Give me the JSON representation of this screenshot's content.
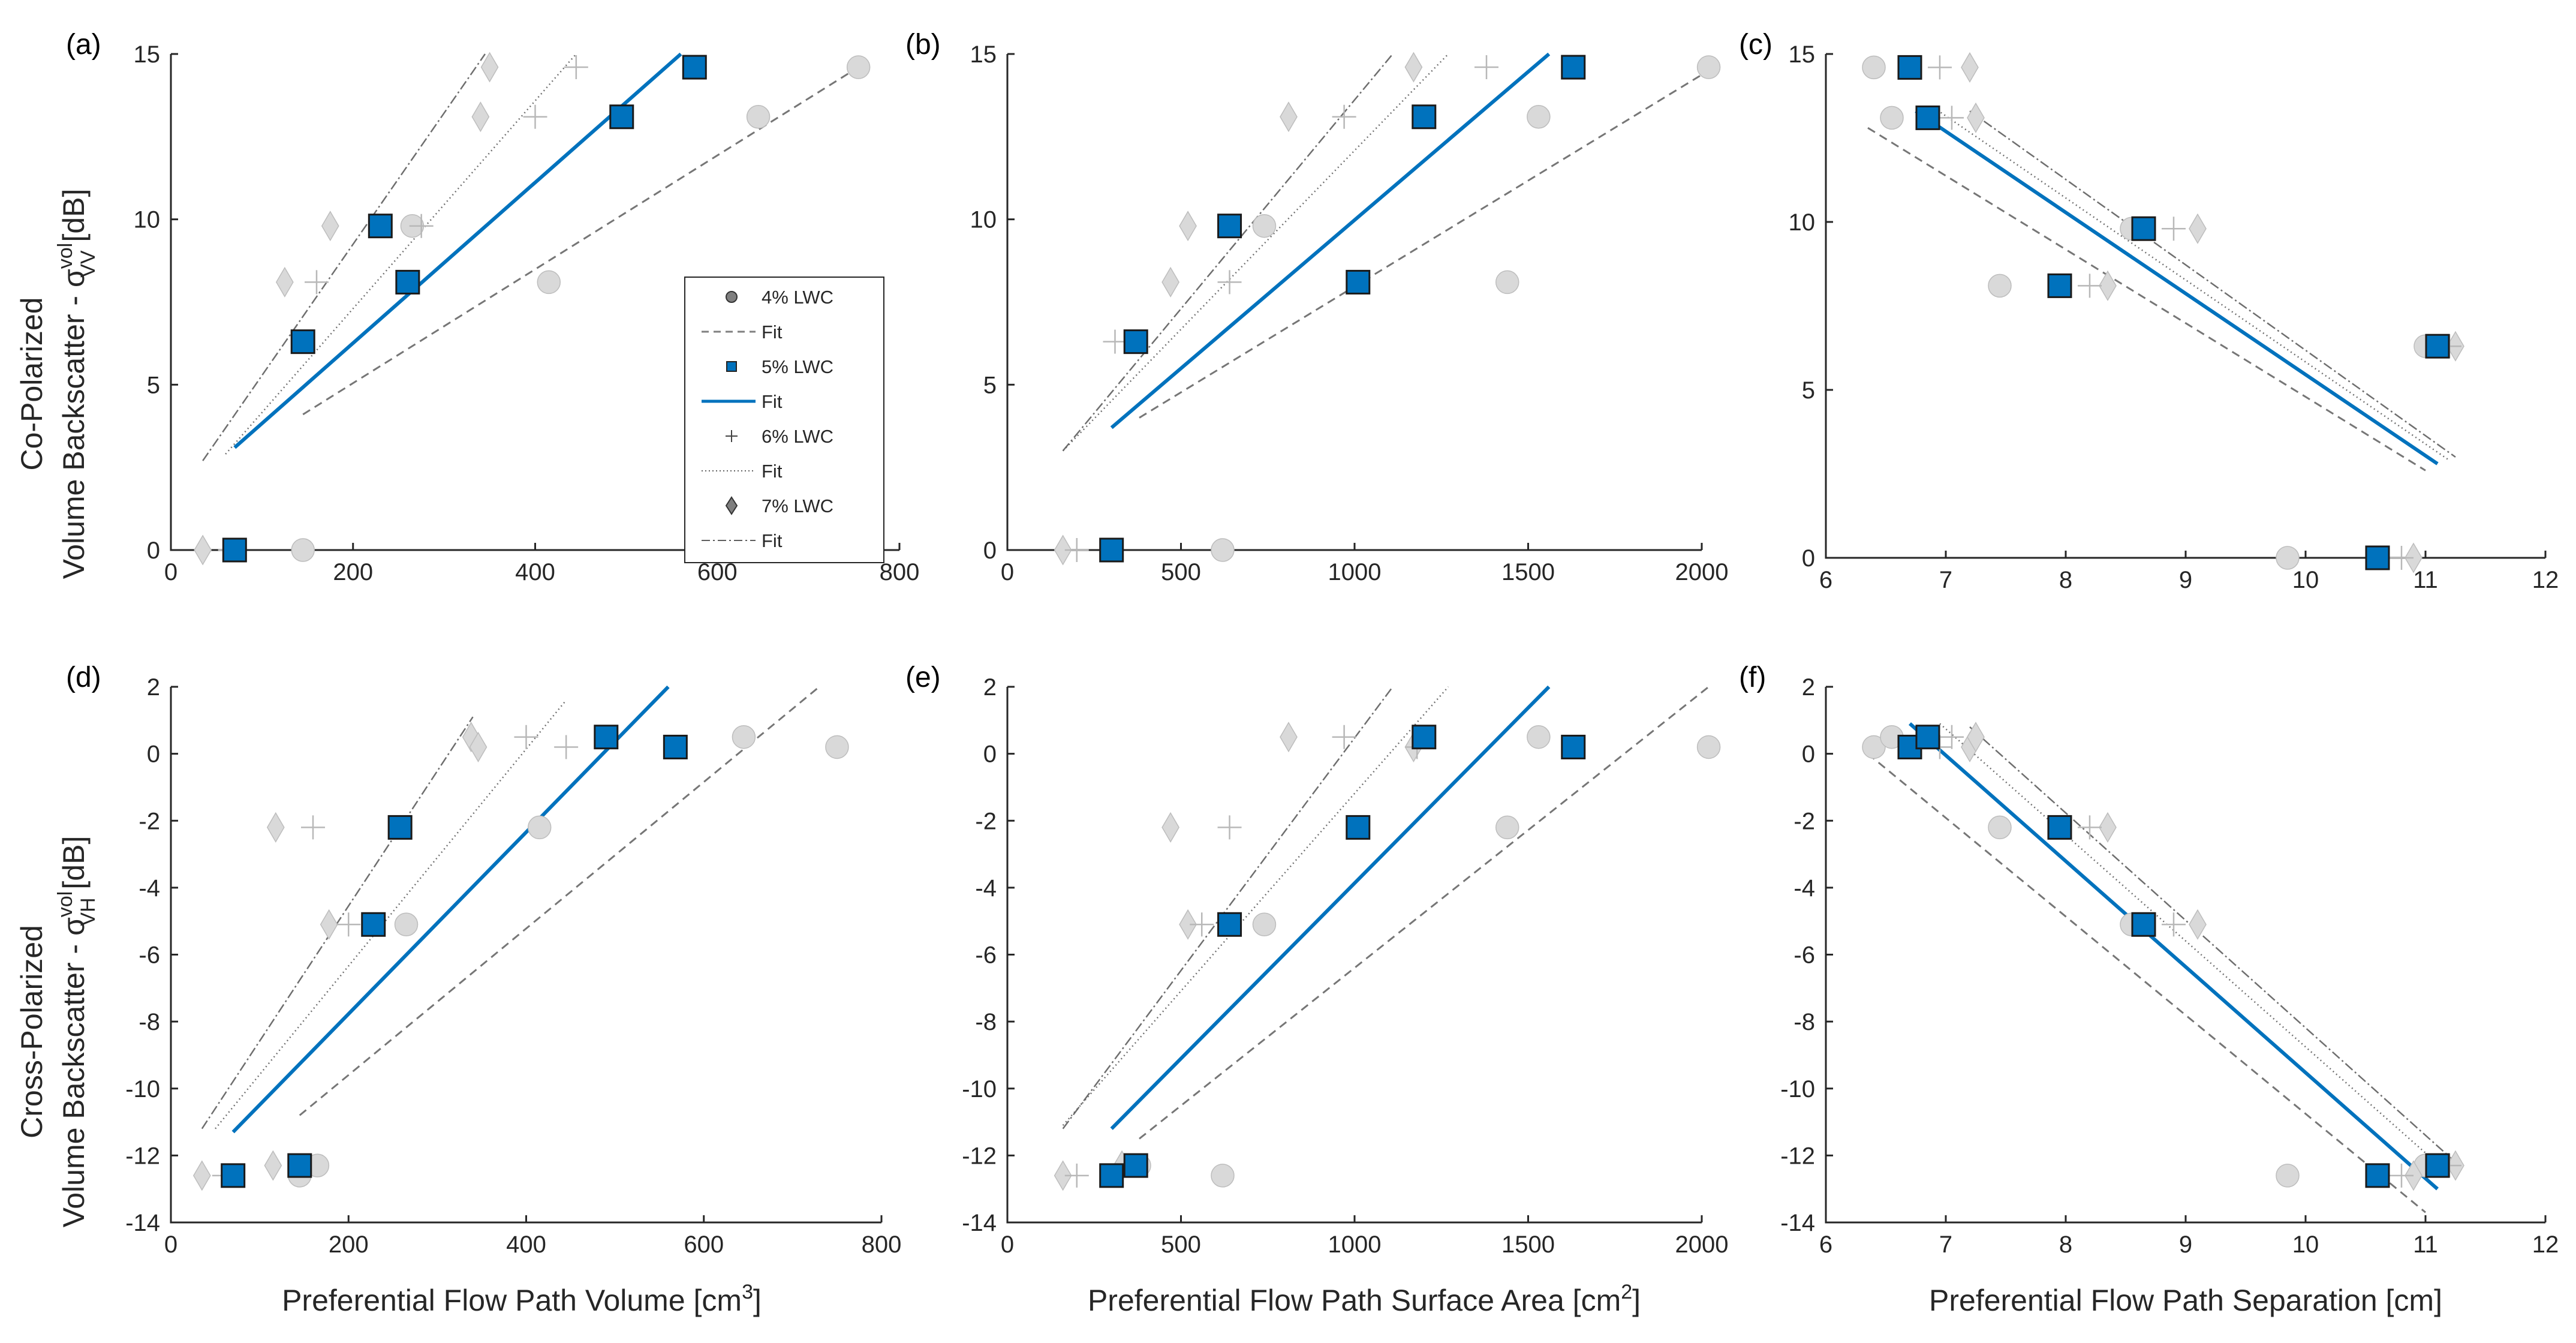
{
  "chart_data": [
    {
      "panel": "(a)",
      "type": "scatter",
      "xlim": [
        0,
        800
      ],
      "ylim": [
        0,
        15
      ],
      "xticks": [
        "0",
        "200",
        "400",
        "600",
        "800"
      ],
      "yticks": [
        "0",
        "5",
        "10",
        "15"
      ],
      "series": [
        {
          "name": "4% LWC",
          "x": [
            145,
            265,
            415,
            645,
            755
          ],
          "y": [
            0,
            9.8,
            8.1,
            13.1,
            14.6
          ],
          "fit": [
            [
              145,
              4.1
            ],
            [
              755,
              14.6
            ]
          ]
        },
        {
          "name": "5% LWC",
          "x": [
            70,
            145,
            230,
            260,
            495,
            575
          ],
          "y": [
            0,
            6.3,
            9.8,
            8.1,
            13.1,
            14.6
          ],
          "fit": [
            [
              70,
              3.1
            ],
            [
              560,
              15
            ]
          ]
        },
        {
          "name": "6% LWC",
          "x": [
            65,
            160,
            275,
            400,
            445
          ],
          "y": [
            0,
            8.1,
            9.8,
            13.1,
            14.6
          ],
          "fit": [
            [
              60,
              2.9
            ],
            [
              445,
              15
            ]
          ]
        },
        {
          "name": "7% LWC",
          "x": [
            35,
            125,
            175,
            340,
            350
          ],
          "y": [
            0,
            8.1,
            9.8,
            13.1,
            14.6
          ],
          "fit": [
            [
              35,
              2.7
            ],
            [
              345,
              15
            ]
          ]
        }
      ]
    },
    {
      "panel": "(b)",
      "type": "scatter",
      "xlim": [
        0,
        2000
      ],
      "ylim": [
        0,
        15
      ],
      "xticks": [
        "0",
        "500",
        "1000",
        "1500",
        "2000"
      ],
      "yticks": [
        "0",
        "5",
        "10",
        "15"
      ],
      "series": [
        {
          "name": "4% LWC",
          "x": [
            620,
            740,
            1440,
            1530,
            2020
          ],
          "y": [
            0,
            9.8,
            8.1,
            13.1,
            14.6
          ],
          "fit": [
            [
              380,
              4
            ],
            [
              2020,
              14.5
            ]
          ]
        },
        {
          "name": "5% LWC",
          "x": [
            300,
            370,
            640,
            1010,
            1200,
            1630
          ],
          "y": [
            0,
            6.3,
            9.8,
            8.1,
            13.1,
            14.6
          ],
          "fit": [
            [
              300,
              3.7
            ],
            [
              1560,
              15
            ]
          ]
        },
        {
          "name": "6% LWC",
          "x": [
            200,
            310,
            640,
            970,
            1380
          ],
          "y": [
            0,
            6.3,
            8.1,
            13.1,
            14.6
          ],
          "fit": [
            [
              160,
              3
            ],
            [
              1270,
              15
            ]
          ]
        },
        {
          "name": "7% LWC",
          "x": [
            160,
            470,
            520,
            810,
            1170
          ],
          "y": [
            0,
            8.1,
            9.8,
            13.1,
            14.6
          ],
          "fit": [
            [
              160,
              3
            ],
            [
              1110,
              15
            ]
          ]
        }
      ]
    },
    {
      "panel": "(c)",
      "type": "scatter",
      "xlim": [
        6,
        12
      ],
      "ylim": [
        0,
        15
      ],
      "xticks": [
        "6",
        "7",
        "8",
        "9",
        "10",
        "11",
        "12"
      ],
      "yticks": [
        "0",
        "5",
        "10",
        "15"
      ],
      "series": [
        {
          "name": "4% LWC",
          "x": [
            6.4,
            6.55,
            7.45,
            8.55,
            9.85,
            11.0
          ],
          "y": [
            14.6,
            13.1,
            8.1,
            9.8,
            0,
            6.3
          ],
          "fit": [
            [
              6.35,
              12.8
            ],
            [
              11.0,
              2.6
            ]
          ]
        },
        {
          "name": "5% LWC",
          "x": [
            6.7,
            6.85,
            7.95,
            8.65,
            10.6,
            11.1
          ],
          "y": [
            14.6,
            13.1,
            8.1,
            9.8,
            0,
            6.3
          ],
          "fit": [
            [
              6.75,
              13.3
            ],
            [
              11.1,
              2.8
            ]
          ]
        },
        {
          "name": "6% LWC",
          "x": [
            6.95,
            7.05,
            8.2,
            8.9,
            10.8,
            11.2
          ],
          "y": [
            14.6,
            13.1,
            8.1,
            9.8,
            0,
            6.3
          ],
          "fit": [
            [
              6.9,
              13.4
            ],
            [
              11.2,
              2.9
            ]
          ]
        },
        {
          "name": "7% LWC",
          "x": [
            7.2,
            7.25,
            8.35,
            9.1,
            10.9,
            11.25
          ],
          "y": [
            14.6,
            13.1,
            8.1,
            9.8,
            0,
            6.3
          ],
          "fit": [
            [
              7.2,
              13.3
            ],
            [
              11.25,
              3.0
            ]
          ]
        }
      ]
    },
    {
      "panel": "(d)",
      "type": "scatter",
      "xlim": [
        0,
        800
      ],
      "ylim": [
        -14,
        2
      ],
      "xticks": [
        "0",
        "200",
        "400",
        "600",
        "800"
      ],
      "yticks": [
        "-14",
        "-12",
        "-10",
        "-8",
        "-6",
        "-4",
        "-2",
        "0",
        "2"
      ],
      "series": [
        {
          "name": "4% LWC",
          "x": [
            145,
            165,
            265,
            415,
            645,
            750
          ],
          "y": [
            -12.6,
            -12.3,
            -5.1,
            -2.2,
            0.5,
            0.2
          ],
          "fit": [
            [
              145,
              -10.8
            ],
            [
              730,
              2
            ]
          ]
        },
        {
          "name": "5% LWC",
          "x": [
            70,
            145,
            228,
            258,
            490,
            568
          ],
          "y": [
            -12.6,
            -12.3,
            -5.1,
            -2.2,
            0.5,
            0.2
          ],
          "fit": [
            [
              70,
              -11.3
            ],
            [
              560,
              2
            ]
          ]
        },
        {
          "name": "6% LWC",
          "x": [
            60,
            160,
            200,
            400,
            445
          ],
          "y": [
            -12.6,
            -2.2,
            -5.1,
            0.5,
            0.2
          ],
          "fit": [
            [
              50,
              -11.2
            ],
            [
              445,
              1.6
            ]
          ]
        },
        {
          "name": "7% LWC",
          "x": [
            35,
            115,
            118,
            178,
            338,
            346
          ],
          "y": [
            -12.6,
            -12.3,
            -2.2,
            -5.1,
            0.5,
            0.2
          ],
          "fit": [
            [
              35,
              -11.2
            ],
            [
              340,
              1.1
            ]
          ]
        }
      ]
    },
    {
      "panel": "(e)",
      "type": "scatter",
      "xlim": [
        0,
        2000
      ],
      "ylim": [
        -14,
        2
      ],
      "xticks": [
        "0",
        "500",
        "1000",
        "1500",
        "2000"
      ],
      "yticks": [
        "-14",
        "-12",
        "-10",
        "-8",
        "-6",
        "-4",
        "-2",
        "0",
        "2"
      ],
      "series": [
        {
          "name": "4% LWC",
          "x": [
            380,
            620,
            740,
            1440,
            1530,
            2020
          ],
          "y": [
            -12.3,
            -12.6,
            -5.1,
            -2.2,
            0.5,
            0.2
          ],
          "fit": [
            [
              380,
              -11.5
            ],
            [
              2020,
              2
            ]
          ]
        },
        {
          "name": "5% LWC",
          "x": [
            300,
            370,
            640,
            1010,
            1200,
            1630
          ],
          "y": [
            -12.6,
            -12.3,
            -5.1,
            -2.2,
            0.5,
            0.2
          ],
          "fit": [
            [
              300,
              -11.2
            ],
            [
              1560,
              2
            ]
          ]
        },
        {
          "name": "6% LWC",
          "x": [
            200,
            560,
            640,
            970,
            1180
          ],
          "y": [
            -12.6,
            -5.1,
            -2.2,
            0.5,
            0.2
          ],
          "fit": [
            [
              160,
              -11.1
            ],
            [
              1270,
              2
            ]
          ]
        },
        {
          "name": "7% LWC",
          "x": [
            160,
            330,
            470,
            520,
            810,
            1170
          ],
          "y": [
            -12.6,
            -12.3,
            -2.2,
            -5.1,
            0.5,
            0.2
          ],
          "fit": [
            [
              160,
              -11.2
            ],
            [
              1110,
              2
            ]
          ]
        }
      ]
    },
    {
      "panel": "(f)",
      "type": "scatter",
      "xlim": [
        6,
        12
      ],
      "ylim": [
        -14,
        2
      ],
      "xticks": [
        "6",
        "7",
        "8",
        "9",
        "10",
        "11",
        "12"
      ],
      "yticks": [
        "-14",
        "-12",
        "-10",
        "-8",
        "-6",
        "-4",
        "-2",
        "0",
        "2"
      ],
      "series": [
        {
          "name": "4% LWC",
          "x": [
            6.4,
            6.55,
            7.45,
            8.55,
            9.85,
            11.0
          ],
          "y": [
            0.2,
            0.5,
            -2.2,
            -5.1,
            -12.6,
            -12.3
          ],
          "fit": [
            [
              6.35,
              0
            ],
            [
              11.0,
              -13.7
            ]
          ]
        },
        {
          "name": "5% LWC",
          "x": [
            6.7,
            6.85,
            7.95,
            8.65,
            10.6,
            11.1
          ],
          "y": [
            0.2,
            0.5,
            -2.2,
            -5.1,
            -12.6,
            -12.3
          ],
          "fit": [
            [
              6.7,
              0.9
            ],
            [
              11.1,
              -13
            ]
          ]
        },
        {
          "name": "6% LWC",
          "x": [
            6.95,
            7.05,
            8.2,
            8.9,
            10.8,
            11.2
          ],
          "y": [
            0.2,
            0.5,
            -2.2,
            -5.1,
            -12.6,
            -12.3
          ],
          "fit": [
            [
              6.95,
              0.9
            ],
            [
              11.15,
              -12.4
            ]
          ]
        },
        {
          "name": "7% LWC",
          "x": [
            7.2,
            7.25,
            8.35,
            9.1,
            10.9,
            11.25
          ],
          "y": [
            0.2,
            0.5,
            -2.2,
            -5.1,
            -12.6,
            -12.3
          ],
          "fit": [
            [
              7.2,
              0.8
            ],
            [
              11.25,
              -12.2
            ]
          ]
        }
      ]
    }
  ],
  "labels": {
    "top_ylabel_line1": "Co-Polarized",
    "top_ylabel_line2": "Volume Backscatter - σ",
    "top_ylabel_sup": "vol",
    "top_ylabel_sub": "VV",
    "top_ylabel_unit": " [dB]",
    "bottom_ylabel_line1": "Cross-Polarized",
    "bottom_ylabel_line2": "Volume Backscatter - σ",
    "bottom_ylabel_sup": "vol",
    "bottom_ylabel_sub": "VH",
    "bottom_ylabel_unit": " [dB]",
    "xlabel_d_main": "Preferential Flow Path Volume [cm",
    "xlabel_d_sup": "3",
    "xlabel_d_end": "]",
    "xlabel_e_main": "Preferential Flow Path Surface Area [cm",
    "xlabel_e_sup": "2",
    "xlabel_e_end": "]",
    "xlabel_f": "Preferential Flow Path Separation [cm]"
  },
  "legend": {
    "position": "inside panel (a), lower-right",
    "entries": [
      "4% LWC",
      "Fit",
      "5% LWC",
      "Fit",
      "6% LWC",
      "Fit",
      "7% LWC",
      "Fit"
    ]
  },
  "colors": {
    "blue": "#0072bd",
    "gray_marker": "#d9d9d9",
    "gray_edge": "#bdbdbd",
    "dark_line": "#5f5f5f",
    "text": "#262626"
  }
}
